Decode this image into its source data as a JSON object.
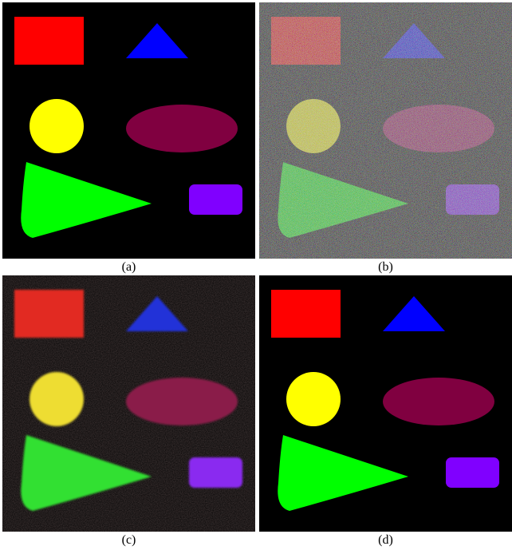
{
  "figure": {
    "panels": [
      {
        "id": "a",
        "caption": "(a)",
        "variant": "clean"
      },
      {
        "id": "b",
        "caption": "(b)",
        "variant": "heavy-noise"
      },
      {
        "id": "c",
        "caption": "(c)",
        "variant": "blurred-denoised"
      },
      {
        "id": "d",
        "caption": "(d)",
        "variant": "restored"
      }
    ],
    "shape_colors": {
      "background": "#000000",
      "rectangle": "#ff0000",
      "triangle": "#0000ff",
      "circle": "#ffff00",
      "ellipse": "#800040",
      "cone": "#00ff00",
      "rounded_rectangle": "#8000ff"
    }
  }
}
